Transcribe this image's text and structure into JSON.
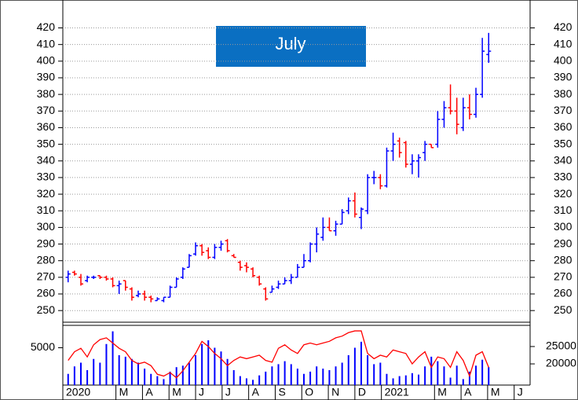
{
  "chart_data": {
    "type": "ohlc",
    "annotation": "July",
    "up_color": "#0000ff",
    "down_color": "#ff0000",
    "xlim": [
      0,
      17.6
    ],
    "xticks": [
      {
        "value": 0,
        "label": "2020"
      },
      {
        "value": 2,
        "label": "M"
      },
      {
        "value": 3,
        "label": "A"
      },
      {
        "value": 4,
        "label": "M"
      },
      {
        "value": 5,
        "label": "J"
      },
      {
        "value": 6,
        "label": "J"
      },
      {
        "value": 7,
        "label": "A"
      },
      {
        "value": 8,
        "label": "S"
      },
      {
        "value": 9,
        "label": "O"
      },
      {
        "value": 10,
        "label": "N"
      },
      {
        "value": 11,
        "label": "D"
      },
      {
        "value": 12,
        "label": "2021"
      },
      {
        "value": 14,
        "label": "M"
      },
      {
        "value": 15,
        "label": "A"
      },
      {
        "value": 16,
        "label": "M"
      },
      {
        "value": 17,
        "label": "J"
      }
    ],
    "ylim": [
      243,
      433
    ],
    "yticks": [
      250,
      260,
      270,
      280,
      290,
      300,
      310,
      320,
      330,
      340,
      350,
      360,
      370,
      380,
      390,
      400,
      410,
      420
    ],
    "grid": true,
    "x": [
      0.2,
      0.44,
      0.68,
      0.92,
      1.16,
      1.4,
      1.64,
      1.88,
      2.12,
      2.36,
      2.6,
      2.84,
      3.08,
      3.32,
      3.56,
      3.8,
      4.04,
      4.28,
      4.52,
      4.76,
      5,
      5.24,
      5.48,
      5.72,
      5.96,
      6.2,
      6.44,
      6.68,
      6.92,
      7.16,
      7.4,
      7.64,
      7.88,
      8.12,
      8.36,
      8.6,
      8.84,
      9.08,
      9.32,
      9.56,
      9.8,
      10.04,
      10.28,
      10.52,
      10.76,
      11,
      11.24,
      11.48,
      11.72,
      11.96,
      12.2,
      12.44,
      12.68,
      12.92,
      13.16,
      13.4,
      13.64,
      13.88,
      14.12,
      14.36,
      14.6,
      14.84,
      15.08,
      15.32,
      15.56,
      15.8,
      16.04
    ],
    "ohlc": [
      [
        270,
        274,
        267,
        272
      ],
      [
        273,
        274,
        271,
        272
      ],
      [
        270,
        272,
        265,
        266
      ],
      [
        268,
        271,
        267,
        270
      ],
      [
        270,
        271,
        269,
        270
      ],
      [
        271,
        271,
        269,
        270
      ],
      [
        270,
        271,
        268,
        269
      ],
      [
        269,
        270,
        264,
        265
      ],
      [
        265,
        268,
        260,
        266
      ],
      [
        268,
        268,
        262,
        264
      ],
      [
        263,
        264,
        256,
        258
      ],
      [
        259,
        262,
        258,
        260
      ],
      [
        260,
        262,
        256,
        258
      ],
      [
        258,
        259,
        255,
        257
      ],
      [
        256,
        258,
        256,
        257
      ],
      [
        256,
        258,
        255,
        258
      ],
      [
        258,
        265,
        258,
        264
      ],
      [
        264,
        270,
        264,
        269
      ],
      [
        270,
        276,
        269,
        275
      ],
      [
        276,
        284,
        276,
        283
      ],
      [
        284,
        291,
        283,
        289
      ],
      [
        289,
        290,
        283,
        285
      ],
      [
        286,
        288,
        281,
        282
      ],
      [
        282,
        290,
        281,
        288
      ],
      [
        288,
        292,
        286,
        290
      ],
      [
        292,
        293,
        285,
        286
      ],
      [
        283,
        284,
        282,
        282
      ],
      [
        279,
        280,
        274,
        276
      ],
      [
        277,
        279,
        273,
        276
      ],
      [
        275,
        276,
        270,
        271
      ],
      [
        270,
        271,
        265,
        266
      ],
      [
        263,
        264,
        256,
        257
      ],
      [
        261,
        265,
        261,
        263
      ],
      [
        264,
        268,
        263,
        266
      ],
      [
        266,
        270,
        266,
        268
      ],
      [
        268,
        272,
        266,
        270
      ],
      [
        270,
        278,
        270,
        276
      ],
      [
        276,
        284,
        276,
        280
      ],
      [
        280,
        291,
        279,
        290
      ],
      [
        290,
        300,
        285,
        296
      ],
      [
        294,
        306,
        292,
        300
      ],
      [
        300,
        306,
        298,
        298
      ],
      [
        298,
        304,
        295,
        302
      ],
      [
        302,
        311,
        302,
        309
      ],
      [
        310,
        318,
        308,
        316
      ],
      [
        316,
        321,
        306,
        308
      ],
      [
        306,
        312,
        299,
        311
      ],
      [
        310,
        332,
        308,
        330
      ],
      [
        330,
        334,
        326,
        330
      ],
      [
        330,
        332,
        323,
        325
      ],
      [
        325,
        348,
        324,
        346
      ],
      [
        346,
        357,
        340,
        350
      ],
      [
        352,
        354,
        342,
        345
      ],
      [
        351,
        352,
        336,
        338
      ],
      [
        338,
        344,
        332,
        340
      ],
      [
        340,
        344,
        330,
        342
      ],
      [
        345,
        352,
        340,
        350
      ],
      [
        350,
        350,
        348,
        348
      ],
      [
        350,
        370,
        348,
        365
      ],
      [
        365,
        376,
        360,
        372
      ],
      [
        372,
        386,
        368,
        370
      ],
      [
        370,
        378,
        356,
        362
      ],
      [
        360,
        378,
        358,
        372
      ],
      [
        372,
        380,
        365,
        368
      ],
      [
        368,
        384,
        366,
        380
      ],
      [
        380,
        414,
        378,
        406
      ],
      [
        404,
        417,
        399,
        406
      ]
    ],
    "volume": {
      "color": "#0000ff",
      "vlim": [
        0,
        8000
      ],
      "vticks": [
        5000
      ],
      "values": [
        1500,
        2500,
        3000,
        2000,
        3500,
        3000,
        5500,
        7200,
        4000,
        3800,
        3500,
        3000,
        2200,
        1500,
        1200,
        800,
        1800,
        2400,
        2600,
        3000,
        4000,
        5500,
        6000,
        5000,
        4500,
        3500,
        2000,
        1200,
        900,
        700,
        1300,
        1800,
        2500,
        2800,
        3200,
        2800,
        2200,
        1500,
        1800,
        2500,
        2200,
        2000,
        2500,
        3000,
        4000,
        5000,
        5800,
        4000,
        2800,
        3000,
        1500,
        900,
        1200,
        1300,
        1600,
        1400,
        2500,
        3800,
        3200,
        2500,
        1000,
        2600,
        800,
        1800,
        2600,
        3400,
        2400
      ]
    },
    "volume_line": {
      "color": "#ff0000",
      "axis": "y2",
      "y2lim": [
        13900,
        31100
      ],
      "y2ticks": [
        20000,
        25000
      ],
      "values": [
        21000,
        23500,
        24500,
        22000,
        25500,
        27000,
        27500,
        26000,
        24500,
        23500,
        21000,
        20000,
        20500,
        19500,
        17000,
        16500,
        17500,
        16000,
        18000,
        20500,
        23000,
        26500,
        25000,
        23000,
        21500,
        19500,
        21000,
        22000,
        21500,
        22000,
        22500,
        21000,
        20500,
        24500,
        25500,
        24000,
        23000,
        25500,
        26000,
        25500,
        26000,
        26500,
        27500,
        28000,
        29000,
        29500,
        29500,
        23000,
        21500,
        22500,
        22000,
        24000,
        23500,
        23000,
        20000,
        22000,
        23500,
        19000,
        22000,
        21500,
        19000,
        23500,
        21000,
        16500,
        22500,
        23500,
        19000
      ]
    }
  }
}
